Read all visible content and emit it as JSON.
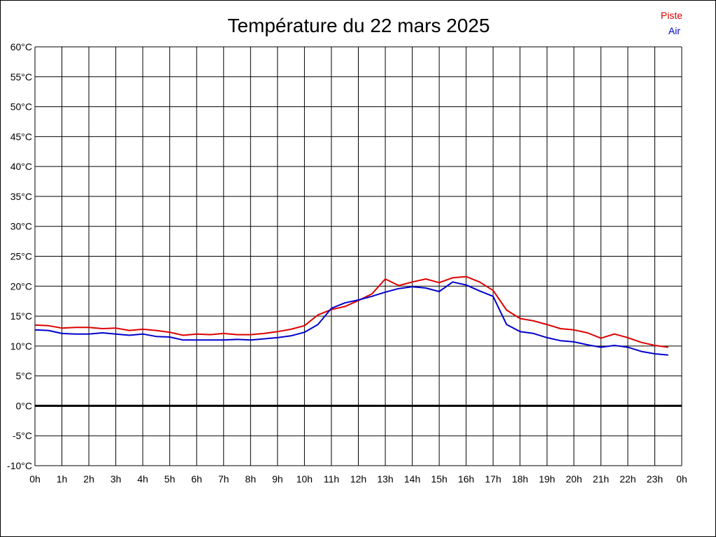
{
  "chart_data": {
    "type": "line",
    "title": "Température du 22 mars 2025",
    "xlabel": "",
    "ylabel": "",
    "ylim": [
      -10,
      60
    ],
    "xlim": [
      0,
      24
    ],
    "grid": true,
    "legend_position": "top-right",
    "zero_line": 0,
    "x_tick_labels": [
      "0h",
      "1h",
      "2h",
      "3h",
      "4h",
      "5h",
      "6h",
      "7h",
      "8h",
      "9h",
      "10h",
      "11h",
      "12h",
      "13h",
      "14h",
      "15h",
      "16h",
      "17h",
      "18h",
      "19h",
      "20h",
      "21h",
      "22h",
      "23h",
      "0h"
    ],
    "y_tick_labels": [
      "60°C",
      "55°C",
      "50°C",
      "45°C",
      "40°C",
      "35°C",
      "30°C",
      "25°C",
      "20°C",
      "15°C",
      "10°C",
      "5°C",
      "0°C",
      "-5°C",
      "-10°C"
    ],
    "y_tick_values": [
      60,
      55,
      50,
      45,
      40,
      35,
      30,
      25,
      20,
      15,
      10,
      5,
      0,
      -5,
      -10
    ],
    "x": [
      0,
      0.5,
      1,
      1.5,
      2,
      2.5,
      3,
      3.5,
      4,
      4.5,
      5,
      5.5,
      6,
      6.5,
      7,
      7.5,
      8,
      8.5,
      9,
      9.5,
      10,
      10.5,
      11,
      11.5,
      12,
      12.5,
      13,
      13.5,
      14,
      14.5,
      15,
      15.5,
      16,
      16.5,
      17,
      17.5,
      18,
      18.5,
      19,
      19.5,
      20,
      20.5,
      21,
      21.5,
      22,
      22.5,
      23,
      23.5
    ],
    "series": [
      {
        "name": "Piste",
        "color": "#dd0000",
        "values": [
          13.5,
          13.4,
          13.0,
          13.1,
          13.1,
          12.9,
          13.0,
          12.6,
          12.8,
          12.6,
          12.3,
          11.8,
          12.0,
          11.9,
          12.1,
          11.9,
          11.9,
          12.1,
          12.4,
          12.8,
          13.4,
          15.2,
          16.1,
          16.6,
          17.6,
          18.7,
          21.2,
          20.1,
          20.7,
          21.2,
          20.6,
          21.4,
          21.6,
          20.7,
          19.3,
          16.0,
          14.6,
          14.2,
          13.6,
          12.9,
          12.7,
          12.2,
          11.3,
          12.0,
          11.4,
          10.6,
          10.1,
          9.8
        ]
      },
      {
        "name": "Air",
        "color": "#0000cc",
        "values": [
          12.7,
          12.6,
          12.1,
          12.0,
          12.0,
          12.2,
          12.0,
          11.8,
          12.0,
          11.6,
          11.5,
          11.0,
          11.0,
          11.0,
          11.0,
          11.1,
          11.0,
          11.2,
          11.4,
          11.7,
          12.3,
          13.6,
          16.3,
          17.2,
          17.7,
          18.3,
          19.0,
          19.6,
          19.9,
          19.7,
          19.1,
          20.7,
          20.2,
          19.2,
          18.3,
          13.6,
          12.4,
          12.1,
          11.4,
          10.9,
          10.7,
          10.2,
          9.8,
          10.1,
          9.8,
          9.1,
          8.7,
          8.5
        ]
      }
    ]
  }
}
